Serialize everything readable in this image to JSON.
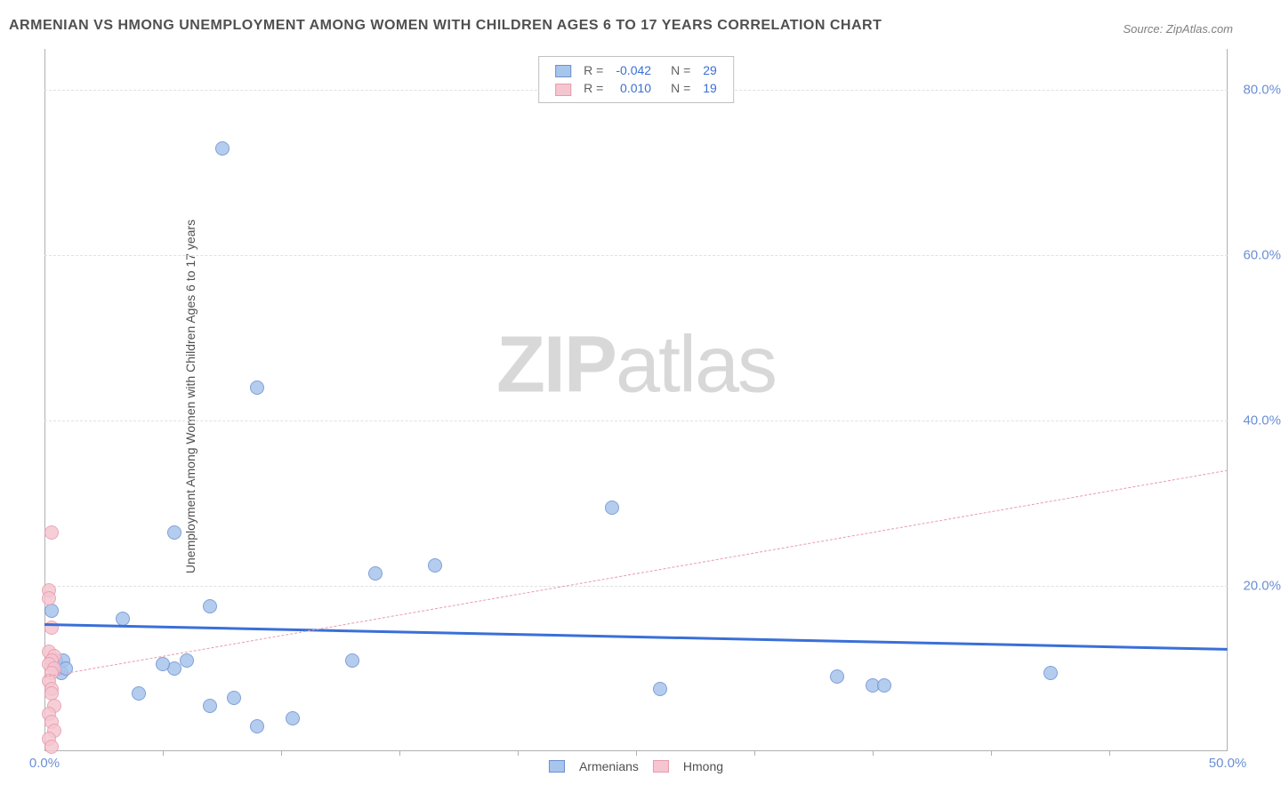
{
  "title": "ARMENIAN VS HMONG UNEMPLOYMENT AMONG WOMEN WITH CHILDREN AGES 6 TO 17 YEARS CORRELATION CHART",
  "source": "Source: ZipAtlas.com",
  "ylabel": "Unemployment Among Women with Children Ages 6 to 17 years",
  "watermark_bold": "ZIP",
  "watermark_light": "atlas",
  "chart": {
    "type": "scatter",
    "xlim": [
      0,
      50
    ],
    "ylim": [
      0,
      85
    ],
    "xticks": [
      0,
      50
    ],
    "xtick_labels": [
      "0.0%",
      "50.0%"
    ],
    "xtick_minor": [
      5,
      10,
      15,
      20,
      25,
      30,
      35,
      40,
      45
    ],
    "yticks": [
      20,
      40,
      60,
      80
    ],
    "ytick_labels": [
      "20.0%",
      "40.0%",
      "60.0%",
      "80.0%"
    ],
    "background_color": "#ffffff",
    "grid_color": "#e0e0e0",
    "border_color": "#b0b0b0",
    "point_radius": 8,
    "point_stroke_width": 1.5,
    "point_fill_opacity": 0.35
  },
  "series": [
    {
      "name": "Armenians",
      "fill_color": "#a8c5ec",
      "stroke_color": "#6b8fd4",
      "data": [
        [
          0.3,
          17
        ],
        [
          0.5,
          11
        ],
        [
          0.5,
          10.5
        ],
        [
          0.6,
          10
        ],
        [
          0.7,
          9.5
        ],
        [
          0.8,
          11
        ],
        [
          0.9,
          10
        ],
        [
          5.5,
          26.5
        ],
        [
          5.5,
          10
        ],
        [
          3.3,
          16
        ],
        [
          7,
          17.5
        ],
        [
          7.5,
          73
        ],
        [
          4,
          7
        ],
        [
          5,
          10.5
        ],
        [
          6,
          11
        ],
        [
          7,
          5.5
        ],
        [
          8,
          6.5
        ],
        [
          9,
          3
        ],
        [
          9,
          44
        ],
        [
          10.5,
          4
        ],
        [
          13,
          11
        ],
        [
          14,
          21.5
        ],
        [
          16.5,
          22.5
        ],
        [
          24,
          29.5
        ],
        [
          26,
          7.5
        ],
        [
          33.5,
          9
        ],
        [
          35,
          8
        ],
        [
          35.5,
          8
        ],
        [
          42.5,
          9.5
        ]
      ],
      "trendline": {
        "y_start": 15.5,
        "y_end": 12.5,
        "style": "solid",
        "width": 3,
        "color": "#3a6fd8"
      }
    },
    {
      "name": "Hmong",
      "fill_color": "#f5c6d0",
      "stroke_color": "#e89ab0",
      "data": [
        [
          0.3,
          26.5
        ],
        [
          0.2,
          19.5
        ],
        [
          0.2,
          18.5
        ],
        [
          0.3,
          15
        ],
        [
          0.2,
          12
        ],
        [
          0.4,
          11.5
        ],
        [
          0.3,
          11
        ],
        [
          0.2,
          10.5
        ],
        [
          0.4,
          10
        ],
        [
          0.3,
          9.5
        ],
        [
          0.2,
          8.5
        ],
        [
          0.3,
          7.5
        ],
        [
          0.3,
          7
        ],
        [
          0.4,
          5.5
        ],
        [
          0.2,
          4.5
        ],
        [
          0.3,
          3.5
        ],
        [
          0.4,
          2.5
        ],
        [
          0.2,
          1.5
        ],
        [
          0.3,
          0.5
        ]
      ],
      "trendline": {
        "y_start": 9,
        "y_end": 34,
        "style": "dashed",
        "width": 1,
        "color": "#e89ab0"
      }
    }
  ],
  "legend_top": {
    "rows": [
      {
        "swatch_fill": "#a8c5ec",
        "swatch_stroke": "#6b8fd4",
        "r_label": "R =",
        "r_value": "-0.042",
        "n_label": "N =",
        "n_value": "29"
      },
      {
        "swatch_fill": "#f5c6d0",
        "swatch_stroke": "#e89ab0",
        "r_label": "R =",
        "r_value": "0.010",
        "n_label": "N =",
        "n_value": "19"
      }
    ],
    "value_color": "#3a6fd8",
    "label_color": "#606060"
  },
  "legend_bottom": {
    "items": [
      {
        "swatch_fill": "#a8c5ec",
        "swatch_stroke": "#6b8fd4",
        "label": "Armenians"
      },
      {
        "swatch_fill": "#f5c6d0",
        "swatch_stroke": "#e89ab0",
        "label": "Hmong"
      }
    ]
  }
}
